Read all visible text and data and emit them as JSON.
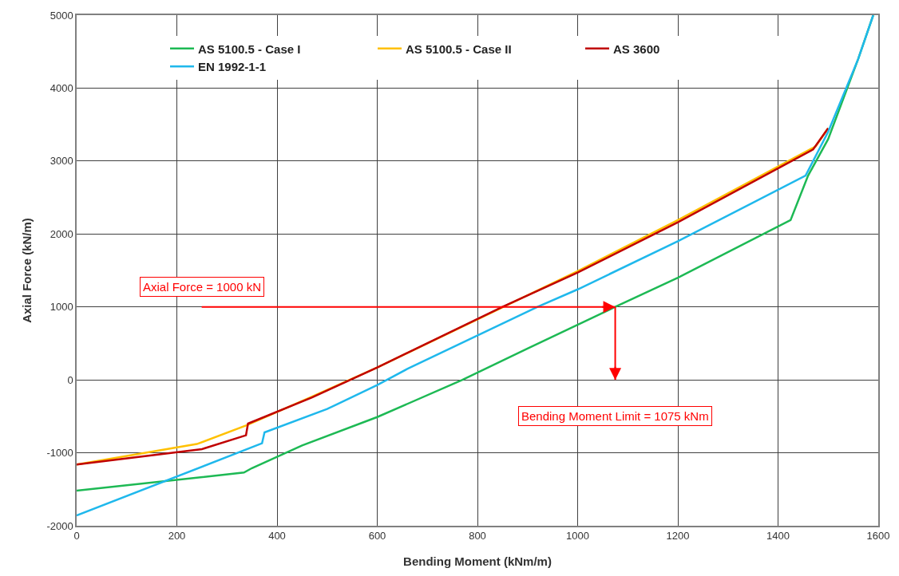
{
  "chart_data": {
    "type": "line",
    "xlabel": "Bending Moment (kNm/m)",
    "ylabel": "Axial Force (kN/m)",
    "xlim": [
      0,
      1600
    ],
    "xticks": [
      0,
      200,
      400,
      600,
      800,
      1000,
      1200,
      1400,
      1600
    ],
    "ylim": [
      -2000,
      5000
    ],
    "yticks": [
      -2000,
      -1000,
      0,
      1000,
      2000,
      3000,
      4000,
      5000
    ],
    "grid": true,
    "legend": "top",
    "marker": "none",
    "line_style": "solid",
    "series": [
      {
        "name": "AS 5100.5 - Case I",
        "color": "#1db954",
        "x": [
          0,
          334,
          350,
          450,
          600,
          770,
          900,
          1075,
          1200,
          1425,
          1460,
          1500,
          1560,
          1590
        ],
        "values": [
          -1520,
          -1270,
          -1210,
          -900,
          -510,
          0,
          430,
          1000,
          1400,
          2190,
          2800,
          3300,
          4400,
          5000
        ]
      },
      {
        "name": "AS 5100.5 - Case II",
        "color": "#ffc000",
        "x": [
          0,
          240,
          340,
          470,
          600,
          800,
          1000,
          1200,
          1475,
          1500
        ],
        "values": [
          -1160,
          -880,
          -620,
          -230,
          170,
          830,
          1490,
          2190,
          3200,
          3450
        ]
      },
      {
        "name": "AS 3600",
        "color": "#c00000",
        "x": [
          0,
          250,
          338,
          342,
          470,
          600,
          850,
          1000,
          1200,
          1470,
          1500
        ],
        "values": [
          -1160,
          -950,
          -760,
          -600,
          -240,
          170,
          1000,
          1470,
          2160,
          3160,
          3450
        ]
      },
      {
        "name": "EN 1992-1-1",
        "color": "#1fb8ec",
        "x": [
          0,
          370,
          375,
          500,
          600,
          660,
          920,
          1000,
          1200,
          1455,
          1500,
          1560,
          1590
        ],
        "values": [
          -1860,
          -870,
          -720,
          -400,
          -70,
          150,
          1000,
          1240,
          1900,
          2800,
          3400,
          4400,
          5000
        ]
      }
    ],
    "ref_lines": [
      {
        "axis": "y",
        "value": 1000,
        "label": "Axial Force = 1000 kN",
        "color": "#ff0000"
      },
      {
        "axis": "x",
        "value": 1075,
        "label": "Bending Moment Limit = 1075 kNm",
        "color": "#ff0000"
      }
    ]
  }
}
